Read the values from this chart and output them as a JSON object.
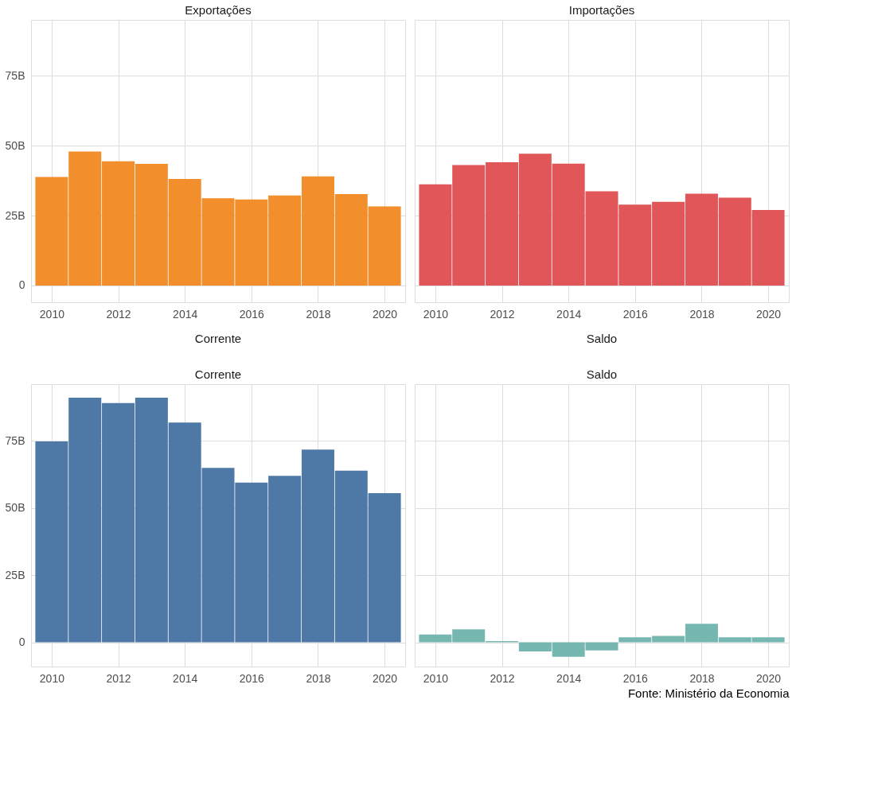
{
  "chart_data": [
    {
      "type": "bar",
      "title": "Exportações",
      "x": [
        2010,
        2011,
        2012,
        2013,
        2014,
        2015,
        2016,
        2017,
        2018,
        2019,
        2020
      ],
      "series": [
        {
          "color": "#f28e2b",
          "values": [
            38.8,
            47.9,
            44.4,
            43.5,
            38.1,
            31.2,
            30.8,
            32.2,
            39.0,
            32.7,
            28.3
          ]
        }
      ],
      "xlim": [
        2009.5,
        2020.5
      ],
      "xticks": [
        2010,
        2012,
        2014,
        2016,
        2018,
        2020
      ],
      "ylim": [
        -6,
        95
      ],
      "yticks": [
        0,
        {
          "value": 25,
          "label": "25B"
        },
        {
          "value": 50,
          "label": "50B"
        },
        {
          "value": 75,
          "label": "75B"
        }
      ],
      "grid": true
    },
    {
      "type": "bar",
      "title": "Importações",
      "x": [
        2010,
        2011,
        2012,
        2013,
        2014,
        2015,
        2016,
        2017,
        2018,
        2019,
        2020
      ],
      "series": [
        {
          "color": "#e15759",
          "values": [
            36.2,
            43.1,
            44.1,
            47.1,
            43.6,
            33.7,
            28.9,
            29.9,
            32.8,
            31.4,
            27.0
          ]
        }
      ],
      "xlim": [
        2009.5,
        2020.5
      ],
      "xticks": [
        2010,
        2012,
        2014,
        2016,
        2018,
        2020
      ],
      "ylim": [
        -6,
        95
      ],
      "yticks": [
        0,
        25,
        50,
        75
      ],
      "grid": true,
      "tick_labels": "x"
    },
    {
      "type": "bar",
      "title": "Corrente",
      "subtitle": "Corrente",
      "x": [
        2010,
        2011,
        2012,
        2013,
        2014,
        2015,
        2016,
        2017,
        2018,
        2019,
        2020
      ],
      "series": [
        {
          "color": "#4e79a7",
          "values": [
            74.7,
            91.0,
            89.0,
            91.0,
            81.7,
            64.9,
            59.4,
            61.9,
            71.7,
            63.8,
            55.5
          ]
        }
      ],
      "xlim": [
        2009.5,
        2020.5
      ],
      "xticks": [
        2010,
        2012,
        2014,
        2016,
        2018,
        2020
      ],
      "ylim": [
        -9,
        96
      ],
      "yticks": [
        0,
        {
          "value": 25,
          "label": "25B"
        },
        {
          "value": 50,
          "label": "50B"
        },
        {
          "value": 75,
          "label": "75B"
        }
      ],
      "grid": true
    },
    {
      "type": "bar",
      "title": "Saldo",
      "subtitle": "Saldo",
      "x": [
        2010,
        2011,
        2012,
        2013,
        2014,
        2015,
        2016,
        2017,
        2018,
        2019,
        2020
      ],
      "series": [
        {
          "color": "#76b7b2",
          "values": [
            2.9,
            4.8,
            0.5,
            -3.4,
            -5.4,
            -3.0,
            1.9,
            2.4,
            6.9,
            1.9,
            1.9
          ]
        }
      ],
      "xlim": [
        2009.5,
        2020.5
      ],
      "xticks": [
        2010,
        2012,
        2014,
        2016,
        2018,
        2020
      ],
      "ylim": [
        -9,
        96
      ],
      "yticks": [
        0,
        25,
        50,
        75
      ],
      "grid": true,
      "tick_labels": "x",
      "annotations": [
        "Fonte: Ministério da Economia"
      ]
    }
  ]
}
